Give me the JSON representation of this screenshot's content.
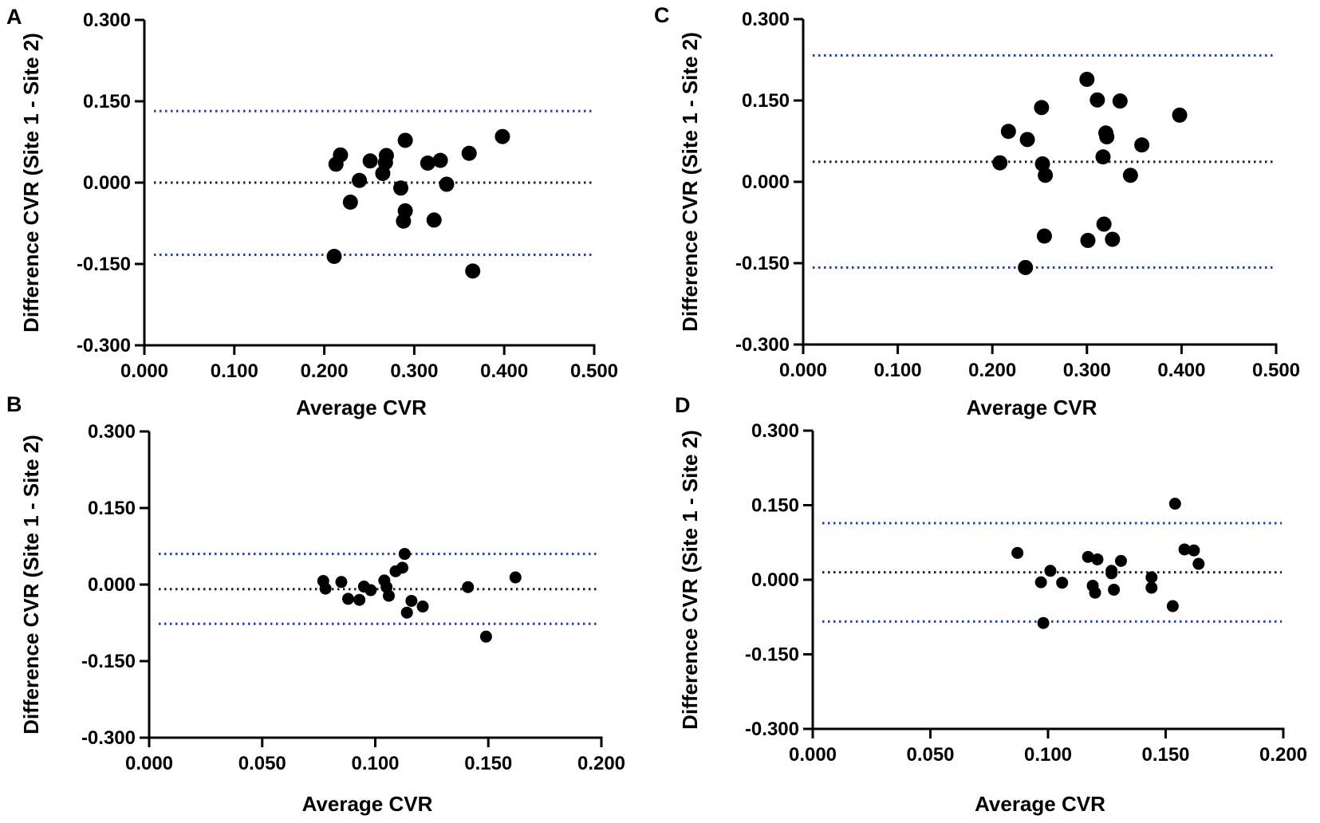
{
  "chart_data": [
    {
      "panel": "A",
      "type": "scatter",
      "xlabel": "Average CVR",
      "ylabel": "Difference CVR (Site 1 - Site 2)",
      "xlim": [
        0,
        0.5
      ],
      "ylim": [
        -0.3,
        0.3
      ],
      "xticks": [
        "0.000",
        "0.100",
        "0.200",
        "0.300",
        "0.400",
        "0.500"
      ],
      "yticks": [
        "-0.300",
        "-0.150",
        "0.000",
        "0.150",
        "0.300"
      ],
      "mean_difference": 0.0,
      "upper_limit": 0.132,
      "lower_limit": -0.133,
      "points": [
        [
          0.211,
          -0.136
        ],
        [
          0.213,
          0.034
        ],
        [
          0.218,
          0.051
        ],
        [
          0.229,
          -0.036
        ],
        [
          0.239,
          0.004
        ],
        [
          0.251,
          0.04
        ],
        [
          0.265,
          0.017
        ],
        [
          0.268,
          0.037
        ],
        [
          0.269,
          0.05
        ],
        [
          0.285,
          -0.01
        ],
        [
          0.288,
          -0.071
        ],
        [
          0.29,
          0.078
        ],
        [
          0.29,
          -0.052
        ],
        [
          0.315,
          0.036
        ],
        [
          0.322,
          -0.069
        ],
        [
          0.329,
          0.041
        ],
        [
          0.336,
          -0.003
        ],
        [
          0.361,
          0.054
        ],
        [
          0.365,
          -0.163
        ],
        [
          0.398,
          0.085
        ]
      ]
    },
    {
      "panel": "B",
      "type": "scatter",
      "xlabel": "Average CVR",
      "ylabel": "Difference CVR (Site 1 - Site 2)",
      "xlim": [
        0,
        0.2
      ],
      "ylim": [
        -0.3,
        0.3
      ],
      "xticks": [
        "0.000",
        "0.050",
        "0.100",
        "0.150",
        "0.200"
      ],
      "yticks": [
        "-0.300",
        "-0.150",
        "0.000",
        "0.150",
        "0.300"
      ],
      "mean_difference": -0.009,
      "upper_limit": 0.06,
      "lower_limit": -0.077,
      "points": [
        [
          0.077,
          0.007
        ],
        [
          0.078,
          -0.008
        ],
        [
          0.085,
          0.005
        ],
        [
          0.088,
          -0.028
        ],
        [
          0.093,
          -0.03
        ],
        [
          0.095,
          -0.004
        ],
        [
          0.098,
          -0.011
        ],
        [
          0.104,
          0.008
        ],
        [
          0.105,
          -0.005
        ],
        [
          0.106,
          -0.022
        ],
        [
          0.109,
          0.026
        ],
        [
          0.112,
          0.033
        ],
        [
          0.113,
          0.06
        ],
        [
          0.114,
          -0.055
        ],
        [
          0.116,
          -0.032
        ],
        [
          0.121,
          -0.043
        ],
        [
          0.141,
          -0.005
        ],
        [
          0.149,
          -0.102
        ],
        [
          0.162,
          0.014
        ]
      ]
    },
    {
      "panel": "C",
      "type": "scatter",
      "xlabel": "Average CVR",
      "ylabel": "Difference CVR (Site 1 - Site 2)",
      "xlim": [
        0,
        0.5
      ],
      "ylim": [
        -0.3,
        0.3
      ],
      "xticks": [
        "0.000",
        "0.100",
        "0.200",
        "0.300",
        "0.400",
        "0.500"
      ],
      "yticks": [
        "-0.300",
        "-0.150",
        "0.000",
        "0.150",
        "0.300"
      ],
      "mean_difference": 0.037,
      "upper_limit": 0.233,
      "lower_limit": -0.158,
      "points": [
        [
          0.208,
          0.035
        ],
        [
          0.217,
          0.093
        ],
        [
          0.235,
          -0.158
        ],
        [
          0.237,
          0.078
        ],
        [
          0.252,
          0.137
        ],
        [
          0.253,
          0.033
        ],
        [
          0.255,
          -0.1
        ],
        [
          0.256,
          0.012
        ],
        [
          0.3,
          0.189
        ],
        [
          0.301,
          -0.108
        ],
        [
          0.311,
          0.151
        ],
        [
          0.317,
          0.046
        ],
        [
          0.318,
          -0.078
        ],
        [
          0.32,
          0.09
        ],
        [
          0.321,
          0.083
        ],
        [
          0.327,
          -0.106
        ],
        [
          0.335,
          0.149
        ],
        [
          0.346,
          0.012
        ],
        [
          0.358,
          0.068
        ],
        [
          0.398,
          0.123
        ]
      ]
    },
    {
      "panel": "D",
      "type": "scatter",
      "xlabel": "Average CVR",
      "ylabel": "Difference CVR (Site 1 - Site 2)",
      "xlim": [
        0,
        0.2
      ],
      "ylim": [
        -0.3,
        0.3
      ],
      "xticks": [
        "0.000",
        "0.050",
        "0.100",
        "0.150",
        "0.200"
      ],
      "yticks": [
        "-0.300",
        "-0.150",
        "0.000",
        "0.150",
        "0.300"
      ],
      "mean_difference": 0.015,
      "upper_limit": 0.114,
      "lower_limit": -0.084,
      "points": [
        [
          0.087,
          0.054
        ],
        [
          0.097,
          -0.005
        ],
        [
          0.098,
          -0.087
        ],
        [
          0.101,
          0.018
        ],
        [
          0.106,
          -0.006
        ],
        [
          0.117,
          0.046
        ],
        [
          0.119,
          -0.012
        ],
        [
          0.12,
          -0.026
        ],
        [
          0.121,
          0.041
        ],
        [
          0.127,
          0.013
        ],
        [
          0.127,
          0.018
        ],
        [
          0.128,
          -0.02
        ],
        [
          0.131,
          0.038
        ],
        [
          0.144,
          -0.016
        ],
        [
          0.144,
          0.005
        ],
        [
          0.153,
          -0.053
        ],
        [
          0.154,
          0.153
        ],
        [
          0.158,
          0.061
        ],
        [
          0.162,
          0.059
        ],
        [
          0.164,
          0.032
        ]
      ]
    }
  ]
}
